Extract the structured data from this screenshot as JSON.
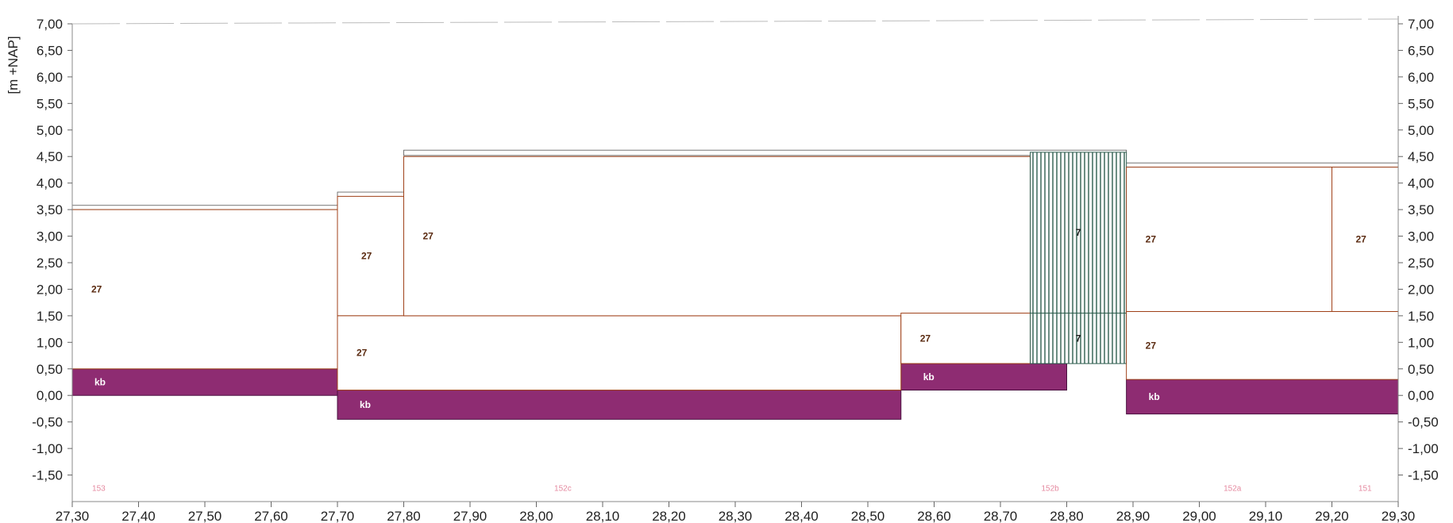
{
  "chart_data": {
    "type": "area",
    "ylabel": "[m +NAP]",
    "xlim": [
      27.3,
      29.3
    ],
    "ylim": [
      -2.0,
      7.0
    ],
    "x_ticks": [
      "27,30",
      "27,40",
      "27,50",
      "27,60",
      "27,70",
      "27,80",
      "27,90",
      "28,00",
      "28,10",
      "28,20",
      "28,30",
      "28,40",
      "28,50",
      "28,60",
      "28,70",
      "28,80",
      "28,90",
      "29,00",
      "29,10",
      "29,20",
      "29,30"
    ],
    "y_ticks_left": [
      "7,00",
      "6,50",
      "6,00",
      "5,50",
      "5,00",
      "4,50",
      "4,00",
      "3,50",
      "3,00",
      "2,50",
      "2,00",
      "1,50",
      "1,00",
      "0,50",
      "0,00",
      "-0,50",
      "-1,00",
      "-1,50"
    ],
    "y_ticks_right": [
      "7,00",
      "6,50",
      "6,00",
      "5,50",
      "5,00",
      "4,50",
      "4,00",
      "3,50",
      "3,00",
      "2,50",
      "2,00",
      "1,50",
      "1,00",
      "0,50",
      "0,00",
      "-0,50",
      "-1,00",
      "-1,50"
    ],
    "layers": [
      {
        "label": "kb",
        "kind": "kb",
        "x0": 27.3,
        "x1": 27.7,
        "bottom": 0.0,
        "top": 0.5
      },
      {
        "label": "kb",
        "kind": "kb",
        "x0": 27.7,
        "x1": 28.55,
        "bottom": -0.45,
        "top": 0.1
      },
      {
        "label": "kb",
        "kind": "kb",
        "x0": 28.55,
        "x1": 28.8,
        "bottom": 0.1,
        "top": 0.6
      },
      {
        "label": "kb",
        "kind": "kb",
        "x0": 28.89,
        "x1": 29.3,
        "bottom": -0.35,
        "top": 0.3
      },
      {
        "label": "27",
        "kind": "fill",
        "x0": 27.3,
        "x1": 27.7,
        "bottom": 0.5,
        "top": 3.5
      },
      {
        "label": "27",
        "kind": "fill",
        "x0": 27.7,
        "x1": 27.8,
        "bottom": 1.5,
        "top": 3.75
      },
      {
        "label": "27",
        "kind": "fill",
        "x0": 27.7,
        "x1": 28.55,
        "bottom": 0.1,
        "top": 1.5
      },
      {
        "label": "27",
        "kind": "fill",
        "x0": 27.8,
        "x1": 28.745,
        "bottom": 1.5,
        "top": 4.5
      },
      {
        "label": "27",
        "kind": "fill",
        "x0": 28.55,
        "x1": 28.745,
        "bottom": 0.6,
        "top": 1.55
      },
      {
        "label": "7",
        "kind": "hatch",
        "x0": 28.745,
        "x1": 28.89,
        "bottom": 1.55,
        "top": 4.58
      },
      {
        "label": "7",
        "kind": "hatch",
        "x0": 28.745,
        "x1": 28.89,
        "bottom": 0.6,
        "top": 1.55
      },
      {
        "label": "27",
        "kind": "fill",
        "x0": 28.89,
        "x1": 29.2,
        "bottom": 1.58,
        "top": 4.3
      },
      {
        "label": "27",
        "kind": "fill",
        "x0": 29.2,
        "x1": 29.3,
        "bottom": 1.58,
        "top": 4.3
      },
      {
        "label": "27",
        "kind": "fill",
        "x0": 28.89,
        "x1": 29.3,
        "bottom": 0.3,
        "top": 1.58
      }
    ],
    "surface_bands": [
      {
        "x0": 27.3,
        "x1": 27.7,
        "bottom": 3.5,
        "top": 3.58
      },
      {
        "x0": 27.7,
        "x1": 27.8,
        "bottom": 3.75,
        "top": 3.83
      },
      {
        "x0": 27.8,
        "x1": 28.89,
        "bottom": 4.52,
        "top": 4.62
      },
      {
        "x0": 28.89,
        "x1": 29.3,
        "bottom": 4.3,
        "top": 4.38
      }
    ],
    "section_labels": [
      {
        "text": "153",
        "x": 27.34
      },
      {
        "text": "152c",
        "x": 28.04
      },
      {
        "text": "152b",
        "x": 28.775
      },
      {
        "text": "152a",
        "x": 29.05
      },
      {
        "text": "151",
        "x": 29.25
      }
    ]
  }
}
